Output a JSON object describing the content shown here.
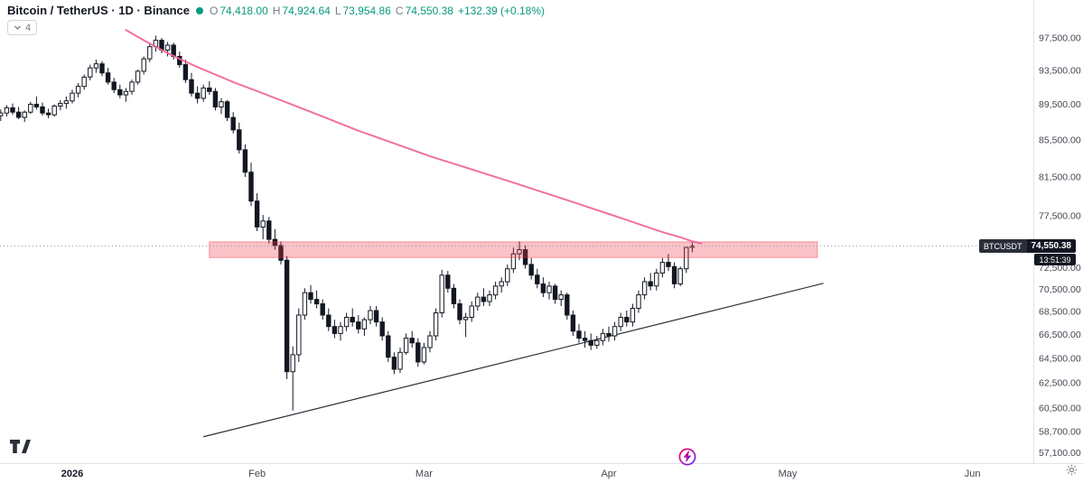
{
  "header": {
    "symbol_title": "Bitcoin / TetherUS · 1D · Binance",
    "ohlc": {
      "o_label": "O",
      "o": "74,418.00",
      "h_label": "H",
      "h": "74,924.64",
      "l_label": "L",
      "l": "73,954.86",
      "c_label": "C",
      "c": "74,550.38",
      "change": "+132.39 (+0.18%)"
    }
  },
  "toolbar": {
    "collapsed_count": "4"
  },
  "price_label": {
    "symbol": "BTCUSDT",
    "price": "74,550.38",
    "countdown": "13:51:39"
  },
  "axes": {
    "price_ticks": [
      {
        "label": "97,500.00",
        "value": 97500
      },
      {
        "label": "93,500.00",
        "value": 93500
      },
      {
        "label": "89,500.00",
        "value": 89500
      },
      {
        "label": "85,500.00",
        "value": 85500
      },
      {
        "label": "81,500.00",
        "value": 81500
      },
      {
        "label": "77,500.00",
        "value": 77500
      },
      {
        "label": "72,500.00",
        "value": 72500
      },
      {
        "label": "70,500.00",
        "value": 70500
      },
      {
        "label": "68,500.00",
        "value": 68500
      },
      {
        "label": "66,500.00",
        "value": 66500
      },
      {
        "label": "64,500.00",
        "value": 64500
      },
      {
        "label": "62,500.00",
        "value": 62500
      },
      {
        "label": "60,500.00",
        "value": 60500
      },
      {
        "label": "58,700.00",
        "value": 58700
      },
      {
        "label": "57,100.00",
        "value": 57100
      }
    ],
    "time_ticks": [
      {
        "label": "2026",
        "index": 12,
        "major": true
      },
      {
        "label": "Feb",
        "index": 43,
        "major": false
      },
      {
        "label": "Mar",
        "index": 71,
        "major": false
      },
      {
        "label": "Apr",
        "index": 102,
        "major": false
      },
      {
        "label": "May",
        "index": 132,
        "major": false
      },
      {
        "label": "Jun",
        "index": 163,
        "major": false
      }
    ]
  },
  "colors": {
    "accent_teal": "#089981",
    "up_fill": "#ffffff",
    "down_fill": "#131722",
    "candle_border": "#131722",
    "ma_line": "#f06292",
    "zone_fill": "rgba(242,54,69,0.30)",
    "zone_border": "rgba(242,54,69,0.45)",
    "trendline": "#2a2e39",
    "price_line": "#9598a1",
    "grid_line": "#e0e3eb",
    "axis_text": "#434651",
    "label_bg": "#131722"
  },
  "chart_data": {
    "type": "candlestick",
    "title": "Bitcoin / TetherUS",
    "symbol": "BTCUSDT",
    "interval": "1D",
    "exchange": "Binance",
    "scale": "log",
    "ylim": [
      56500,
      99500
    ],
    "grid": false,
    "current_price": 74550.38,
    "ohlc_current": {
      "open": 74418.0,
      "high": 74924.64,
      "low": 73954.86,
      "close": 74550.38,
      "change": 132.39,
      "change_pct": 0.18
    },
    "candles": [
      [
        88200,
        88900,
        87600,
        88500
      ],
      [
        88500,
        89400,
        88100,
        89100
      ],
      [
        89100,
        89600,
        88300,
        88600
      ],
      [
        88600,
        89200,
        87800,
        88000
      ],
      [
        88000,
        88800,
        87500,
        88600
      ],
      [
        88600,
        89800,
        88400,
        89500
      ],
      [
        89500,
        90400,
        88900,
        89200
      ],
      [
        89200,
        89700,
        88200,
        88500
      ],
      [
        88500,
        89000,
        87900,
        88300
      ],
      [
        88300,
        89500,
        88100,
        89300
      ],
      [
        89300,
        90000,
        88800,
        89600
      ],
      [
        89600,
        90400,
        89000,
        89900
      ],
      [
        89900,
        91200,
        89600,
        90800
      ],
      [
        90800,
        92000,
        90300,
        91600
      ],
      [
        91600,
        93000,
        91200,
        92700
      ],
      [
        92700,
        94200,
        92300,
        93800
      ],
      [
        93800,
        94800,
        93200,
        94300
      ],
      [
        94300,
        94600,
        92800,
        93200
      ],
      [
        93200,
        93800,
        91800,
        92100
      ],
      [
        92100,
        92600,
        90800,
        91200
      ],
      [
        91200,
        91800,
        90200,
        90600
      ],
      [
        90600,
        91400,
        89800,
        91000
      ],
      [
        91000,
        92400,
        90600,
        92100
      ],
      [
        92100,
        93600,
        91800,
        93400
      ],
      [
        93400,
        95200,
        93000,
        94900
      ],
      [
        94900,
        96800,
        94500,
        96400
      ],
      [
        96400,
        97800,
        95800,
        97200
      ],
      [
        97200,
        97500,
        95600,
        96000
      ],
      [
        96000,
        97000,
        95200,
        96600
      ],
      [
        96600,
        96900,
        94800,
        95200
      ],
      [
        95200,
        95800,
        93800,
        94200
      ],
      [
        94200,
        94800,
        92000,
        92400
      ],
      [
        92400,
        93200,
        90400,
        90800
      ],
      [
        90800,
        91600,
        89600,
        90200
      ],
      [
        90200,
        91800,
        89800,
        91400
      ],
      [
        91400,
        92200,
        90600,
        91000
      ],
      [
        91000,
        91400,
        88800,
        89200
      ],
      [
        89200,
        90200,
        88400,
        89800
      ],
      [
        89800,
        90000,
        87600,
        88000
      ],
      [
        88000,
        88600,
        86200,
        86600
      ],
      [
        86600,
        87400,
        84000,
        84400
      ],
      [
        84400,
        85000,
        81500,
        82000
      ],
      [
        82000,
        83000,
        78500,
        79000
      ],
      [
        79000,
        79800,
        76000,
        76400
      ],
      [
        76400,
        77600,
        75200,
        77000
      ],
      [
        77000,
        77400,
        74800,
        75200
      ],
      [
        75200,
        76200,
        74200,
        74600
      ],
      [
        74600,
        75000,
        72800,
        73200
      ],
      [
        73200,
        73600,
        62800,
        63400
      ],
      [
        63400,
        65500,
        60300,
        64800
      ],
      [
        64800,
        68800,
        64200,
        68200
      ],
      [
        68200,
        70600,
        67800,
        70200
      ],
      [
        70200,
        70900,
        69200,
        69600
      ],
      [
        69600,
        70400,
        68800,
        69200
      ],
      [
        69200,
        69600,
        67800,
        68200
      ],
      [
        68200,
        68800,
        66800,
        67200
      ],
      [
        67200,
        67800,
        66200,
        66600
      ],
      [
        66600,
        67600,
        66000,
        67200
      ],
      [
        67200,
        68400,
        66800,
        68000
      ],
      [
        68000,
        68800,
        67200,
        67600
      ],
      [
        67600,
        68200,
        66600,
        67000
      ],
      [
        67000,
        68000,
        66400,
        67800
      ],
      [
        67800,
        69000,
        67400,
        68600
      ],
      [
        68600,
        69000,
        67200,
        67600
      ],
      [
        67600,
        68000,
        66000,
        66400
      ],
      [
        66400,
        66800,
        64200,
        64600
      ],
      [
        64600,
        65000,
        63200,
        63600
      ],
      [
        63600,
        65400,
        63300,
        65000
      ],
      [
        65000,
        66600,
        64800,
        66200
      ],
      [
        66200,
        66800,
        65400,
        65800
      ],
      [
        65800,
        66200,
        63800,
        64200
      ],
      [
        64200,
        65800,
        64000,
        65400
      ],
      [
        65400,
        66800,
        65000,
        66400
      ],
      [
        66400,
        68800,
        66000,
        68400
      ],
      [
        68400,
        72300,
        68000,
        71800
      ],
      [
        71800,
        72200,
        70200,
        70600
      ],
      [
        70600,
        71000,
        68800,
        69200
      ],
      [
        69200,
        69600,
        67400,
        67800
      ],
      [
        67800,
        68400,
        66300,
        68000
      ],
      [
        68000,
        69400,
        67600,
        69000
      ],
      [
        69000,
        70200,
        68600,
        69800
      ],
      [
        69800,
        70600,
        69000,
        69400
      ],
      [
        69400,
        70400,
        69000,
        70000
      ],
      [
        70000,
        71200,
        69600,
        70800
      ],
      [
        70800,
        71600,
        70200,
        71200
      ],
      [
        71200,
        72800,
        70800,
        72400
      ],
      [
        72400,
        74400,
        72000,
        73800
      ],
      [
        73800,
        75000,
        73200,
        74200
      ],
      [
        74200,
        74600,
        72400,
        72800
      ],
      [
        72800,
        73400,
        71400,
        71800
      ],
      [
        71800,
        72400,
        70600,
        71000
      ],
      [
        71000,
        71600,
        69800,
        70200
      ],
      [
        70200,
        71200,
        69600,
        70800
      ],
      [
        70800,
        71000,
        69200,
        69600
      ],
      [
        69600,
        70400,
        69000,
        70000
      ],
      [
        70000,
        70200,
        67800,
        68200
      ],
      [
        68200,
        68600,
        66400,
        66800
      ],
      [
        66800,
        67400,
        65800,
        66200
      ],
      [
        66200,
        66800,
        65400,
        66000
      ],
      [
        66000,
        66600,
        65200,
        65600
      ],
      [
        65600,
        66400,
        65300,
        66000
      ],
      [
        66000,
        67000,
        65600,
        66600
      ],
      [
        66600,
        67200,
        65900,
        66400
      ],
      [
        66400,
        67600,
        66000,
        67200
      ],
      [
        67200,
        68400,
        66800,
        68000
      ],
      [
        68000,
        68600,
        67200,
        67600
      ],
      [
        67600,
        69200,
        67200,
        68800
      ],
      [
        68800,
        70400,
        68400,
        70000
      ],
      [
        70000,
        71600,
        69600,
        71200
      ],
      [
        71200,
        72000,
        70400,
        70800
      ],
      [
        70800,
        72400,
        70400,
        72000
      ],
      [
        72000,
        73400,
        71600,
        73000
      ],
      [
        73000,
        73800,
        72200,
        72600
      ],
      [
        72600,
        73000,
        70600,
        71000
      ],
      [
        71000,
        72600,
        70800,
        72400
      ],
      [
        72400,
        74450,
        72000,
        74418
      ],
      [
        74418,
        74924.64,
        73954.86,
        74550.38
      ]
    ],
    "ma_line": {
      "name": "moving-average",
      "points": [
        [
          21,
          98500
        ],
        [
          24,
          97200
        ],
        [
          27,
          96000
        ],
        [
          30,
          94900
        ],
        [
          33,
          93900
        ],
        [
          36,
          93000
        ],
        [
          39,
          92100
        ],
        [
          42,
          91300
        ],
        [
          45,
          90500
        ],
        [
          48,
          89700
        ],
        [
          51,
          88900
        ],
        [
          54,
          88100
        ],
        [
          57,
          87300
        ],
        [
          60,
          86500
        ],
        [
          63,
          85800
        ],
        [
          66,
          85100
        ],
        [
          69,
          84400
        ],
        [
          72,
          83700
        ],
        [
          75,
          83100
        ],
        [
          78,
          82500
        ],
        [
          81,
          81900
        ],
        [
          84,
          81300
        ],
        [
          87,
          80700
        ],
        [
          90,
          80100
        ],
        [
          93,
          79500
        ],
        [
          96,
          78900
        ],
        [
          99,
          78300
        ],
        [
          102,
          77700
        ],
        [
          105,
          77100
        ],
        [
          108,
          76500
        ],
        [
          111,
          75900
        ],
        [
          114,
          75400
        ],
        [
          116,
          75000
        ],
        [
          117.5,
          74800
        ]
      ]
    },
    "trendline": {
      "name": "ascending-support-trendline",
      "points": [
        [
          34,
          58300
        ],
        [
          138,
          71050
        ]
      ]
    },
    "resistance_zone": {
      "i1": 35,
      "i2": 137,
      "top": 74950,
      "bottom": 73450
    }
  }
}
